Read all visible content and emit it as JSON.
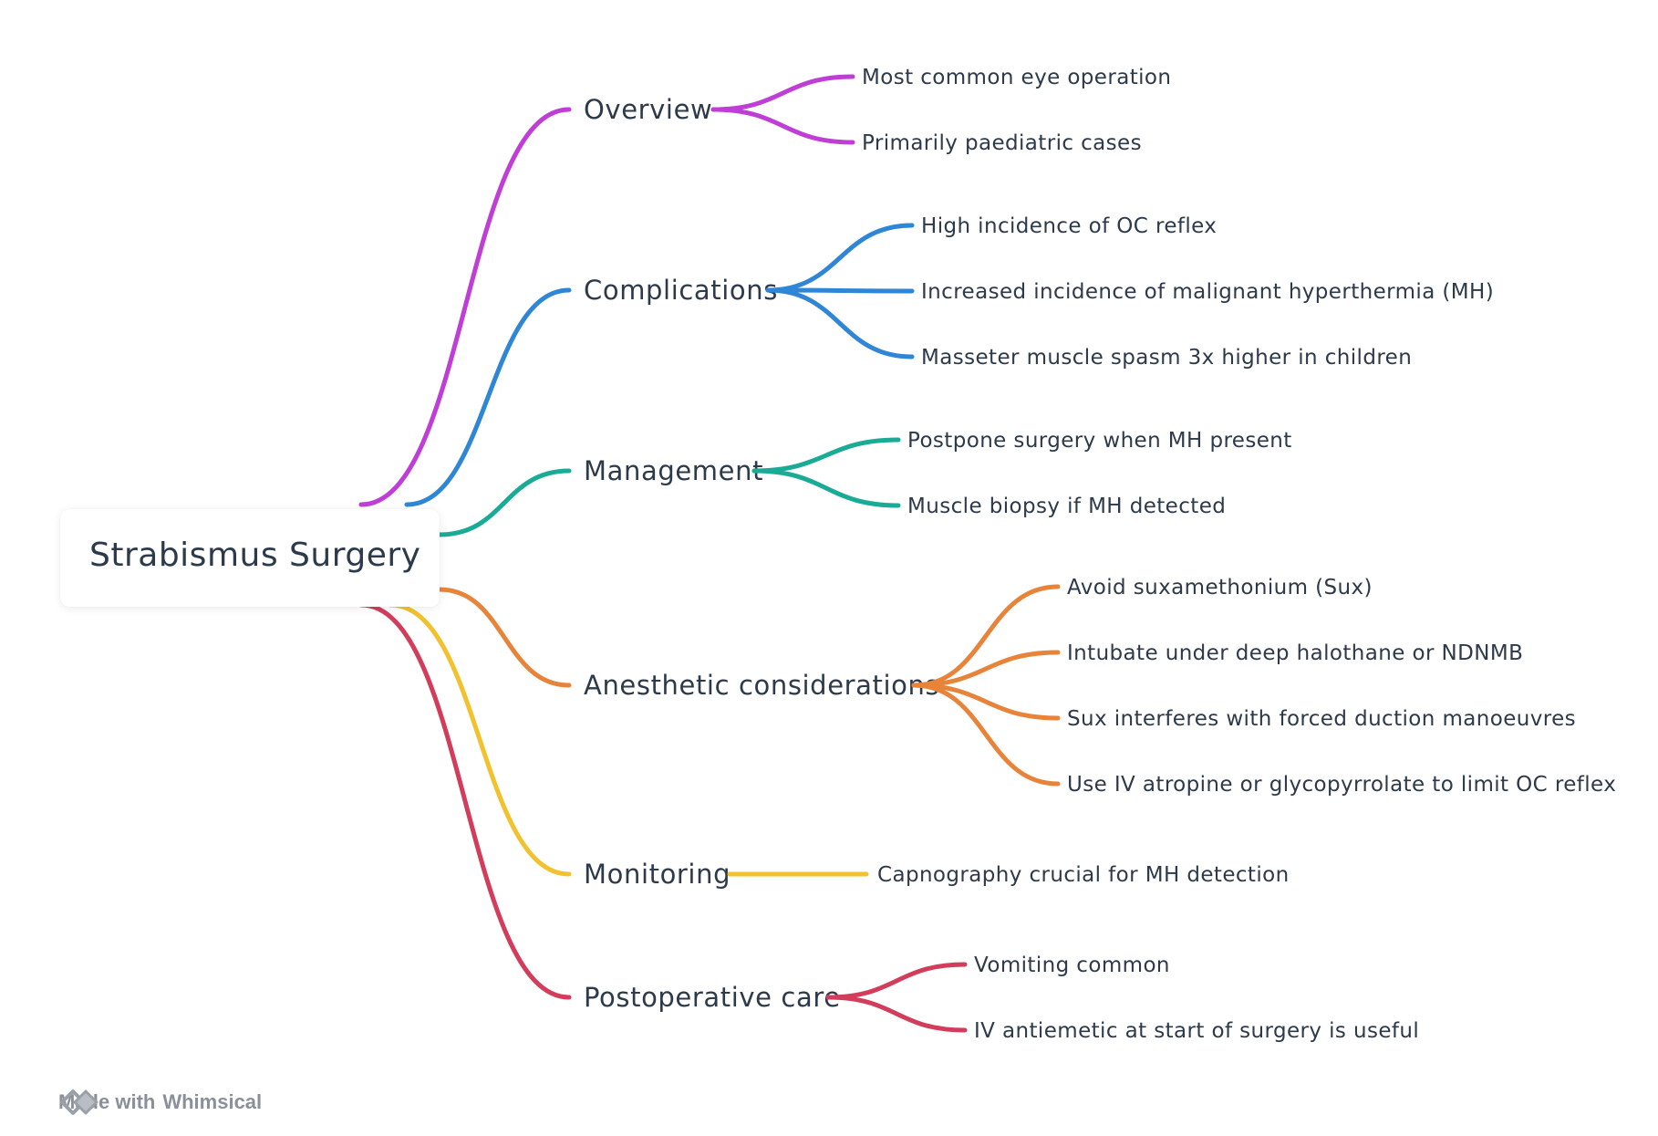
{
  "root": {
    "label": "Strabismus Surgery"
  },
  "branches": [
    {
      "label": "Overview",
      "color": "#bf3fd6",
      "children": [
        "Most common eye operation",
        "Primarily paediatric cases"
      ]
    },
    {
      "label": "Complications",
      "color": "#2f86d6",
      "children": [
        "High incidence of OC reflex",
        "Increased incidence of malignant hyperthermia (MH)",
        "Masseter muscle spasm 3x higher in children"
      ]
    },
    {
      "label": "Management",
      "color": "#1aab97",
      "children": [
        "Postpone surgery when MH present",
        "Muscle biopsy if MH detected"
      ]
    },
    {
      "label": "Anesthetic considerations",
      "color": "#e8833a",
      "children": [
        "Avoid suxamethonium (Sux)",
        "Intubate under deep halothane or NDNMB",
        "Sux interferes with forced duction manoeuvres",
        "Use IV atropine or glycopyrrolate to limit OC reflex"
      ]
    },
    {
      "label": "Monitoring",
      "color": "#f2c12e",
      "children": [
        "Capnography crucial for MH detection"
      ]
    },
    {
      "label": "Postoperative care",
      "color": "#d23d5c",
      "children": [
        "Vomiting common",
        "IV antiemetic at start of surgery is useful"
      ]
    }
  ],
  "footer": {
    "prefix": "Made with",
    "brand": "Whimsical"
  }
}
